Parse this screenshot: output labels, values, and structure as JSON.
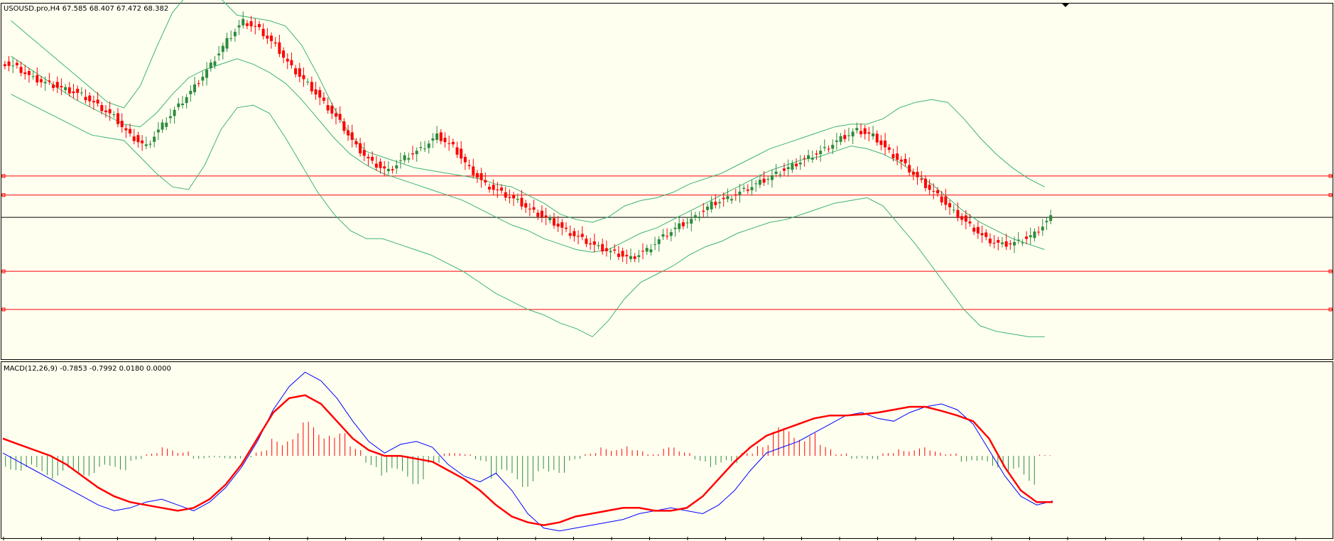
{
  "main_panel": {
    "header": "USOUSD.pro,H4  67.585 68.407 67.472 68.382"
  },
  "macd_panel": {
    "header": "MACD(12,26,9) -0.7853 -0.7992 0.0180 0.0000"
  },
  "colors": {
    "background": "#fffff0",
    "bull_candle": "#2e8b3d",
    "bear_candle": "#ff0000",
    "bollinger": "#3cb371",
    "hline": "#ff0000",
    "macd_line": "#0000ff",
    "signal_line": "#ff0000",
    "hist_pos": "#ff0000",
    "hist_neg": "#2e8b3d"
  },
  "chart_data": [
    {
      "type": "candlestick",
      "symbol": "USOUSD.pro",
      "timeframe": "H4",
      "last_bar": {
        "open": 67.585,
        "high": 68.407,
        "low": 67.472,
        "close": 68.382
      },
      "indicators": [
        "Bollinger Bands"
      ],
      "ylim": [
        63.2,
        76.2
      ],
      "horizontal_levels": [
        68.38,
        69.2,
        69.9,
        66.4,
        65.0
      ],
      "close_approx": [
        73.9,
        73.5,
        73.3,
        73.1,
        72.9,
        72.5,
        72.1,
        71.4,
        71.0,
        71.8,
        72.5,
        73.2,
        74.0,
        74.9,
        75.6,
        75.3,
        74.7,
        73.9,
        73.3,
        72.6,
        71.9,
        71.0,
        70.4,
        70.1,
        70.6,
        70.9,
        71.4,
        71.0,
        70.2,
        69.6,
        69.3,
        69.0,
        68.6,
        68.3,
        67.9,
        67.6,
        67.3,
        67.1,
        66.9,
        67.2,
        67.7,
        68.1,
        68.4,
        68.9,
        69.1,
        69.4,
        69.7,
        70.0,
        70.3,
        70.6,
        70.9,
        71.3,
        71.6,
        71.4,
        70.8,
        70.3,
        69.7,
        69.2,
        68.6,
        68.1,
        67.6,
        67.4,
        67.5,
        67.8,
        68.4
      ],
      "bollinger_upper_approx": [
        75.6,
        75.1,
        74.6,
        74.1,
        73.6,
        73.1,
        72.6,
        72.4,
        73.2,
        74.6,
        75.9,
        76.6,
        76.9,
        76.4,
        75.8,
        75.7,
        75.6,
        75.4,
        74.7,
        73.6,
        72.4,
        71.4,
        70.8,
        70.6,
        70.4,
        70.2,
        70.1,
        70.0,
        69.9,
        69.8,
        69.6,
        69.5,
        69.2,
        68.9,
        68.5,
        68.3,
        68.2,
        68.4,
        68.8,
        69.0,
        69.1,
        69.3,
        69.6,
        69.8,
        70.0,
        70.3,
        70.6,
        70.9,
        71.1,
        71.3,
        71.5,
        71.7,
        71.8,
        71.8,
        72.0,
        72.4,
        72.6,
        72.7,
        72.6,
        72.0,
        71.3,
        70.7,
        70.2,
        69.8,
        69.5
      ],
      "bollinger_middle_approx": [
        74.3,
        73.9,
        73.5,
        73.1,
        72.7,
        72.4,
        72.1,
        71.8,
        71.7,
        72.2,
        72.9,
        73.5,
        73.8,
        74.0,
        74.2,
        74.0,
        73.7,
        73.3,
        72.7,
        72.0,
        71.3,
        70.7,
        70.3,
        70.0,
        69.8,
        69.6,
        69.4,
        69.2,
        69.0,
        68.7,
        68.4,
        68.1,
        67.9,
        67.6,
        67.4,
        67.2,
        67.1,
        67.2,
        67.5,
        67.8,
        68.0,
        68.3,
        68.6,
        68.9,
        69.2,
        69.5,
        69.8,
        70.1,
        70.3,
        70.5,
        70.6,
        70.8,
        71.0,
        70.9,
        70.7,
        70.4,
        70.0,
        69.6,
        69.1,
        68.6,
        68.2,
        67.9,
        67.6,
        67.4,
        67.2
      ],
      "bollinger_lower_approx": [
        72.9,
        72.6,
        72.3,
        72.0,
        71.7,
        71.4,
        71.3,
        71.2,
        70.6,
        70.0,
        69.5,
        69.4,
        70.3,
        71.6,
        72.4,
        72.5,
        72.2,
        71.3,
        70.3,
        69.3,
        68.5,
        67.9,
        67.6,
        67.6,
        67.4,
        67.2,
        67.0,
        66.7,
        66.4,
        66.0,
        65.6,
        65.3,
        65.0,
        64.8,
        64.5,
        64.3,
        64.0,
        64.6,
        65.4,
        66.0,
        66.3,
        66.6,
        67.0,
        67.3,
        67.5,
        67.8,
        68.0,
        68.2,
        68.3,
        68.5,
        68.7,
        68.9,
        69.0,
        69.1,
        68.8,
        68.1,
        67.4,
        66.6,
        65.8,
        65.0,
        64.4,
        64.2,
        64.1,
        64.0,
        64.0
      ]
    },
    {
      "type": "line",
      "indicator": "MACD(12,26,9)",
      "last_values": {
        "macd": -0.7853,
        "signal": -0.7992,
        "histogram": 0.018,
        "extra": 0.0
      },
      "ylim": [
        -1.4,
        1.6
      ],
      "series": [
        {
          "values": [
            0.05,
            -0.1,
            -0.25,
            -0.4,
            -0.55,
            -0.7,
            -0.85,
            -0.95,
            -0.9,
            -0.8,
            -0.75,
            -0.85,
            -0.95,
            -0.8,
            -0.55,
            -0.2,
            0.25,
            0.8,
            1.2,
            1.45,
            1.3,
            1.0,
            0.6,
            0.25,
            0.05,
            0.2,
            0.25,
            0.15,
            -0.15,
            -0.35,
            -0.45,
            -0.3,
            -0.6,
            -1.0,
            -1.25,
            -1.3,
            -1.25,
            -1.2,
            -1.15,
            -1.1,
            -1.0,
            -0.95,
            -0.9,
            -0.95,
            -1.0,
            -0.85,
            -0.6,
            -0.25,
            0.05,
            0.15,
            0.25,
            0.4,
            0.55,
            0.7,
            0.75,
            0.65,
            0.6,
            0.75,
            0.85,
            0.9,
            0.8,
            0.55,
            0.1,
            -0.35,
            -0.7,
            -0.85,
            -0.78
          ]
        },
        {
          "values": [
            0.3,
            0.2,
            0.1,
            0.0,
            -0.15,
            -0.35,
            -0.55,
            -0.7,
            -0.8,
            -0.85,
            -0.9,
            -0.95,
            -0.9,
            -0.75,
            -0.5,
            -0.15,
            0.3,
            0.75,
            1.0,
            1.05,
            0.9,
            0.6,
            0.3,
            0.1,
            0.0,
            0.0,
            -0.05,
            -0.1,
            -0.25,
            -0.4,
            -0.6,
            -0.85,
            -1.05,
            -1.15,
            -1.2,
            -1.15,
            -1.05,
            -1.0,
            -0.95,
            -0.9,
            -0.9,
            -0.95,
            -0.95,
            -0.9,
            -0.7,
            -0.4,
            -0.1,
            0.15,
            0.35,
            0.45,
            0.55,
            0.65,
            0.7,
            0.7,
            0.72,
            0.75,
            0.8,
            0.85,
            0.85,
            0.78,
            0.7,
            0.6,
            0.3,
            -0.2,
            -0.6,
            -0.8,
            -0.8
          ]
        }
      ],
      "histogram": [
        -0.25,
        -0.3,
        -0.35,
        -0.4,
        -0.4,
        -0.35,
        -0.3,
        -0.25,
        -0.1,
        0.05,
        0.15,
        0.1,
        -0.05,
        -0.05,
        -0.05,
        -0.05,
        0.1,
        0.3,
        0.5,
        0.6,
        0.6,
        0.4,
        0.2,
        -0.2,
        -0.35,
        -0.45,
        -0.5,
        -0.2,
        0.05,
        0.05,
        -0.1,
        -0.4,
        -0.5,
        -0.55,
        -0.45,
        -0.3,
        -0.1,
        0.05,
        0.15,
        0.2,
        0.1,
        0.05,
        0.15,
        0.1,
        -0.1,
        -0.2,
        -0.15,
        0.05,
        0.3,
        0.5,
        0.55,
        0.4,
        0.2,
        0.05,
        -0.05,
        -0.1,
        0.05,
        0.15,
        0.15,
        0.1,
        0.05,
        -0.1,
        -0.15,
        -0.2,
        -0.4,
        -0.5,
        0.02
      ]
    }
  ]
}
